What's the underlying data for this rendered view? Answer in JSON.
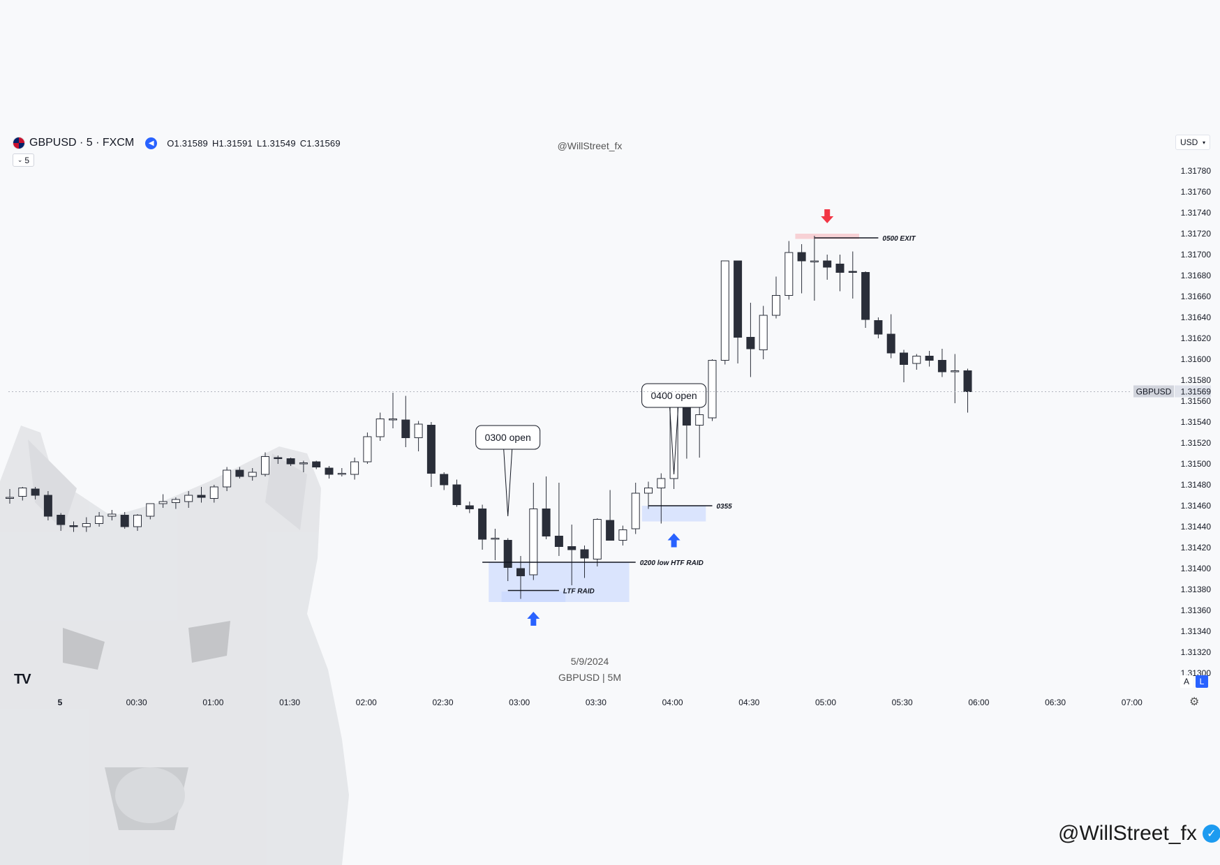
{
  "header": {
    "symbol_label": "GBPUSD · 5 · FXCM",
    "ohlc": {
      "o": "O1.31589",
      "h": "H1.31591",
      "l": "L1.31549",
      "c": "C1.31569"
    },
    "interval_value": "5",
    "watermark_top": "@WillStreet_fx",
    "currency": "USD"
  },
  "captions": {
    "date": "5/9/2024",
    "symbol_tf": "GBPUSD | 5M"
  },
  "axis_buttons": {
    "auto": "A",
    "log": "L"
  },
  "signature": "@WillStreet_fx",
  "colors": {
    "bull_body": "#ffffff",
    "bear_body": "#2a2e39",
    "wick": "#2a2e39",
    "zone_fill": "#c7d6ff",
    "arrow_up": "#2962ff",
    "arrow_down": "#f23645",
    "exit_zone": "#f7b6bd"
  },
  "chart_data": {
    "type": "candlestick",
    "title": "GBPUSD · 5 · FXCM",
    "ylim": [
      1.313,
      1.3179
    ],
    "y_ticks": [
      "1.31780",
      "1.31760",
      "1.31740",
      "1.31720",
      "1.31700",
      "1.31680",
      "1.31660",
      "1.31640",
      "1.31620",
      "1.31600",
      "1.31580",
      "1.31560",
      "1.31540",
      "1.31520",
      "1.31500",
      "1.31480",
      "1.31460",
      "1.31440",
      "1.31420",
      "1.31400",
      "1.31380",
      "1.31360",
      "1.31340",
      "1.31320",
      "1.31300"
    ],
    "x_ticks": [
      "5",
      "00:30",
      "01:00",
      "01:30",
      "02:00",
      "02:30",
      "03:00",
      "03:30",
      "04:00",
      "04:30",
      "05:00",
      "05:30",
      "06:00",
      "06:30",
      "07:00"
    ],
    "last_price": {
      "label": "GBPUSD",
      "value": "1.31569"
    },
    "candles": [
      {
        "t": "23:55",
        "o": 1.31468,
        "h": 1.31476,
        "l": 1.31462,
        "c": 1.31468
      },
      {
        "t": "00:00",
        "o": 1.31469,
        "h": 1.31478,
        "l": 1.31465,
        "c": 1.31477
      },
      {
        "t": "00:05",
        "o": 1.31476,
        "h": 1.31478,
        "l": 1.31466,
        "c": 1.3147
      },
      {
        "t": "00:10",
        "o": 1.3147,
        "h": 1.31474,
        "l": 1.31446,
        "c": 1.3145
      },
      {
        "t": "00:15",
        "o": 1.31451,
        "h": 1.31453,
        "l": 1.31436,
        "c": 1.31442
      },
      {
        "t": "00:20",
        "o": 1.31441,
        "h": 1.31445,
        "l": 1.31435,
        "c": 1.3144
      },
      {
        "t": "00:25",
        "o": 1.3144,
        "h": 1.31449,
        "l": 1.31435,
        "c": 1.31443
      },
      {
        "t": "00:30",
        "o": 1.31443,
        "h": 1.31454,
        "l": 1.3144,
        "c": 1.3145
      },
      {
        "t": "00:35",
        "o": 1.3145,
        "h": 1.31456,
        "l": 1.31446,
        "c": 1.31452
      },
      {
        "t": "00:40",
        "o": 1.31451,
        "h": 1.31454,
        "l": 1.31438,
        "c": 1.3144
      },
      {
        "t": "00:45",
        "o": 1.3144,
        "h": 1.31452,
        "l": 1.31436,
        "c": 1.31451
      },
      {
        "t": "00:50",
        "o": 1.3145,
        "h": 1.31462,
        "l": 1.31447,
        "c": 1.31462
      },
      {
        "t": "00:55",
        "o": 1.31462,
        "h": 1.31471,
        "l": 1.31458,
        "c": 1.31464
      },
      {
        "t": "01:00",
        "o": 1.31463,
        "h": 1.31468,
        "l": 1.31457,
        "c": 1.31466
      },
      {
        "t": "01:05",
        "o": 1.31464,
        "h": 1.31474,
        "l": 1.31458,
        "c": 1.3147
      },
      {
        "t": "01:10",
        "o": 1.3147,
        "h": 1.31478,
        "l": 1.31463,
        "c": 1.31468
      },
      {
        "t": "01:15",
        "o": 1.31467,
        "h": 1.3148,
        "l": 1.31463,
        "c": 1.31478
      },
      {
        "t": "01:20",
        "o": 1.31478,
        "h": 1.31497,
        "l": 1.31474,
        "c": 1.31494
      },
      {
        "t": "01:25",
        "o": 1.31494,
        "h": 1.31497,
        "l": 1.31486,
        "c": 1.31488
      },
      {
        "t": "01:30",
        "o": 1.31488,
        "h": 1.31496,
        "l": 1.31484,
        "c": 1.31492
      },
      {
        "t": "01:35",
        "o": 1.3149,
        "h": 1.31511,
        "l": 1.31488,
        "c": 1.31507
      },
      {
        "t": "01:40",
        "o": 1.31506,
        "h": 1.31508,
        "l": 1.315,
        "c": 1.31505
      },
      {
        "t": "01:45",
        "o": 1.31505,
        "h": 1.31506,
        "l": 1.31498,
        "c": 1.315
      },
      {
        "t": "01:50",
        "o": 1.315,
        "h": 1.31503,
        "l": 1.31492,
        "c": 1.31501
      },
      {
        "t": "01:55",
        "o": 1.31502,
        "h": 1.31503,
        "l": 1.31495,
        "c": 1.31497
      },
      {
        "t": "02:00",
        "o": 1.31496,
        "h": 1.31498,
        "l": 1.31486,
        "c": 1.3149
      },
      {
        "t": "02:05",
        "o": 1.3149,
        "h": 1.31496,
        "l": 1.31488,
        "c": 1.31491
      },
      {
        "t": "02:10",
        "o": 1.3149,
        "h": 1.31506,
        "l": 1.31485,
        "c": 1.31502
      },
      {
        "t": "02:15",
        "o": 1.31502,
        "h": 1.3153,
        "l": 1.315,
        "c": 1.31526
      },
      {
        "t": "02:20",
        "o": 1.31526,
        "h": 1.31549,
        "l": 1.31522,
        "c": 1.31543
      },
      {
        "t": "02:25",
        "o": 1.31543,
        "h": 1.31568,
        "l": 1.31534,
        "c": 1.31543
      },
      {
        "t": "02:30",
        "o": 1.31542,
        "h": 1.31565,
        "l": 1.31516,
        "c": 1.31525
      },
      {
        "t": "02:35",
        "o": 1.31525,
        "h": 1.31541,
        "l": 1.31512,
        "c": 1.31538
      },
      {
        "t": "02:40",
        "o": 1.31537,
        "h": 1.3154,
        "l": 1.31478,
        "c": 1.31491
      },
      {
        "t": "02:45",
        "o": 1.3149,
        "h": 1.31492,
        "l": 1.31475,
        "c": 1.3148
      },
      {
        "t": "02:50",
        "o": 1.3148,
        "h": 1.31485,
        "l": 1.31459,
        "c": 1.31461
      },
      {
        "t": "02:55",
        "o": 1.3146,
        "h": 1.31464,
        "l": 1.31453,
        "c": 1.31457
      },
      {
        "t": "03:00",
        "o": 1.31457,
        "h": 1.31461,
        "l": 1.31418,
        "c": 1.31428
      },
      {
        "t": "03:05",
        "o": 1.31428,
        "h": 1.31438,
        "l": 1.31408,
        "c": 1.31429
      },
      {
        "t": "03:10",
        "o": 1.31427,
        "h": 1.31429,
        "l": 1.31388,
        "c": 1.31401
      },
      {
        "t": "03:15",
        "o": 1.314,
        "h": 1.31412,
        "l": 1.31371,
        "c": 1.31393
      },
      {
        "t": "03:20",
        "o": 1.31394,
        "h": 1.31482,
        "l": 1.31389,
        "c": 1.31457
      },
      {
        "t": "03:25",
        "o": 1.31457,
        "h": 1.31488,
        "l": 1.31428,
        "c": 1.31431
      },
      {
        "t": "03:30",
        "o": 1.31431,
        "h": 1.31482,
        "l": 1.31412,
        "c": 1.31421
      },
      {
        "t": "03:35",
        "o": 1.31421,
        "h": 1.31442,
        "l": 1.31384,
        "c": 1.31418
      },
      {
        "t": "03:40",
        "o": 1.31418,
        "h": 1.31422,
        "l": 1.31391,
        "c": 1.3141
      },
      {
        "t": "03:45",
        "o": 1.31409,
        "h": 1.31448,
        "l": 1.31402,
        "c": 1.31447
      },
      {
        "t": "03:50",
        "o": 1.31446,
        "h": 1.31475,
        "l": 1.31428,
        "c": 1.31427
      },
      {
        "t": "03:55",
        "o": 1.31427,
        "h": 1.31441,
        "l": 1.31422,
        "c": 1.31437
      },
      {
        "t": "04:00",
        "o": 1.31438,
        "h": 1.31482,
        "l": 1.31433,
        "c": 1.31472
      },
      {
        "t": "04:05",
        "o": 1.31472,
        "h": 1.31483,
        "l": 1.31457,
        "c": 1.31477
      },
      {
        "t": "04:10",
        "o": 1.31477,
        "h": 1.31491,
        "l": 1.31443,
        "c": 1.31486
      },
      {
        "t": "04:15",
        "o": 1.31486,
        "h": 1.31565,
        "l": 1.31476,
        "c": 1.3156
      },
      {
        "t": "04:20",
        "o": 1.3156,
        "h": 1.31561,
        "l": 1.31505,
        "c": 1.31537
      },
      {
        "t": "04:25",
        "o": 1.31537,
        "h": 1.3156,
        "l": 1.31506,
        "c": 1.31547
      },
      {
        "t": "04:30",
        "o": 1.31544,
        "h": 1.316,
        "l": 1.31541,
        "c": 1.31599
      },
      {
        "t": "04:35",
        "o": 1.31599,
        "h": 1.31694,
        "l": 1.31595,
        "c": 1.31694
      },
      {
        "t": "04:40",
        "o": 1.31694,
        "h": 1.31694,
        "l": 1.31596,
        "c": 1.31621
      },
      {
        "t": "04:45",
        "o": 1.31621,
        "h": 1.31654,
        "l": 1.31583,
        "c": 1.3161
      },
      {
        "t": "04:50",
        "o": 1.31609,
        "h": 1.31651,
        "l": 1.316,
        "c": 1.31642
      },
      {
        "t": "04:55",
        "o": 1.31642,
        "h": 1.31679,
        "l": 1.31639,
        "c": 1.31661
      },
      {
        "t": "05:00",
        "o": 1.31661,
        "h": 1.31713,
        "l": 1.31657,
        "c": 1.31702
      },
      {
        "t": "05:05",
        "o": 1.31702,
        "h": 1.3171,
        "l": 1.31663,
        "c": 1.31694
      },
      {
        "t": "05:10",
        "o": 1.31694,
        "h": 1.31718,
        "l": 1.31656,
        "c": 1.31694
      },
      {
        "t": "05:15",
        "o": 1.31694,
        "h": 1.317,
        "l": 1.31676,
        "c": 1.31688
      },
      {
        "t": "05:20",
        "o": 1.31691,
        "h": 1.317,
        "l": 1.31665,
        "c": 1.31683
      },
      {
        "t": "05:25",
        "o": 1.31684,
        "h": 1.31703,
        "l": 1.31658,
        "c": 1.31683
      },
      {
        "t": "05:30",
        "o": 1.31683,
        "h": 1.31684,
        "l": 1.3163,
        "c": 1.31638
      },
      {
        "t": "05:35",
        "o": 1.31637,
        "h": 1.3164,
        "l": 1.3162,
        "c": 1.31624
      },
      {
        "t": "05:40",
        "o": 1.31624,
        "h": 1.31643,
        "l": 1.31601,
        "c": 1.31606
      },
      {
        "t": "05:45",
        "o": 1.31606,
        "h": 1.31609,
        "l": 1.31578,
        "c": 1.31595
      },
      {
        "t": "05:50",
        "o": 1.31596,
        "h": 1.31605,
        "l": 1.3159,
        "c": 1.31603
      },
      {
        "t": "05:55",
        "o": 1.31603,
        "h": 1.31608,
        "l": 1.31593,
        "c": 1.31599
      },
      {
        "t": "06:00",
        "o": 1.31599,
        "h": 1.3161,
        "l": 1.31583,
        "c": 1.31588
      },
      {
        "t": "06:05",
        "o": 1.31588,
        "h": 1.31605,
        "l": 1.31558,
        "c": 1.31589
      },
      {
        "t": "06:10",
        "o": 1.31589,
        "h": 1.31591,
        "l": 1.31549,
        "c": 1.31569
      }
    ],
    "annotations": [
      {
        "text": "0300 open",
        "type": "callout",
        "candle": 39,
        "price": 1.3145
      },
      {
        "text": "0400 open",
        "type": "callout",
        "candle": 52,
        "price": 1.3149
      },
      {
        "text": "0200 low HTF RAID",
        "type": "level",
        "price": 1.31406,
        "from": 37,
        "to": 49
      },
      {
        "text": "LTF RAID",
        "type": "level",
        "price": 1.31379,
        "from": 39,
        "to": 43
      },
      {
        "text": "0355",
        "type": "level",
        "price": 1.3146,
        "from": 50,
        "to": 55
      },
      {
        "text": "0500 EXIT",
        "type": "level",
        "price": 1.31716,
        "from": 63,
        "to": 68
      }
    ],
    "zones": [
      {
        "from": 38,
        "to": 48,
        "top": 1.31406,
        "bottom": 1.31368
      },
      {
        "from": 39,
        "to": 43,
        "top": 1.31378,
        "bottom": 1.31368
      },
      {
        "from": 50,
        "to": 54,
        "top": 1.3146,
        "bottom": 1.31445
      },
      {
        "from": 62,
        "to": 66,
        "top": 1.3172,
        "bottom": 1.31715,
        "color": "exit"
      }
    ],
    "signals": [
      {
        "direction": "up",
        "candle": 41,
        "price": 1.31368
      },
      {
        "direction": "up",
        "candle": 52,
        "price": 1.31443
      },
      {
        "direction": "down",
        "candle": 64,
        "price": 1.31722
      }
    ]
  }
}
